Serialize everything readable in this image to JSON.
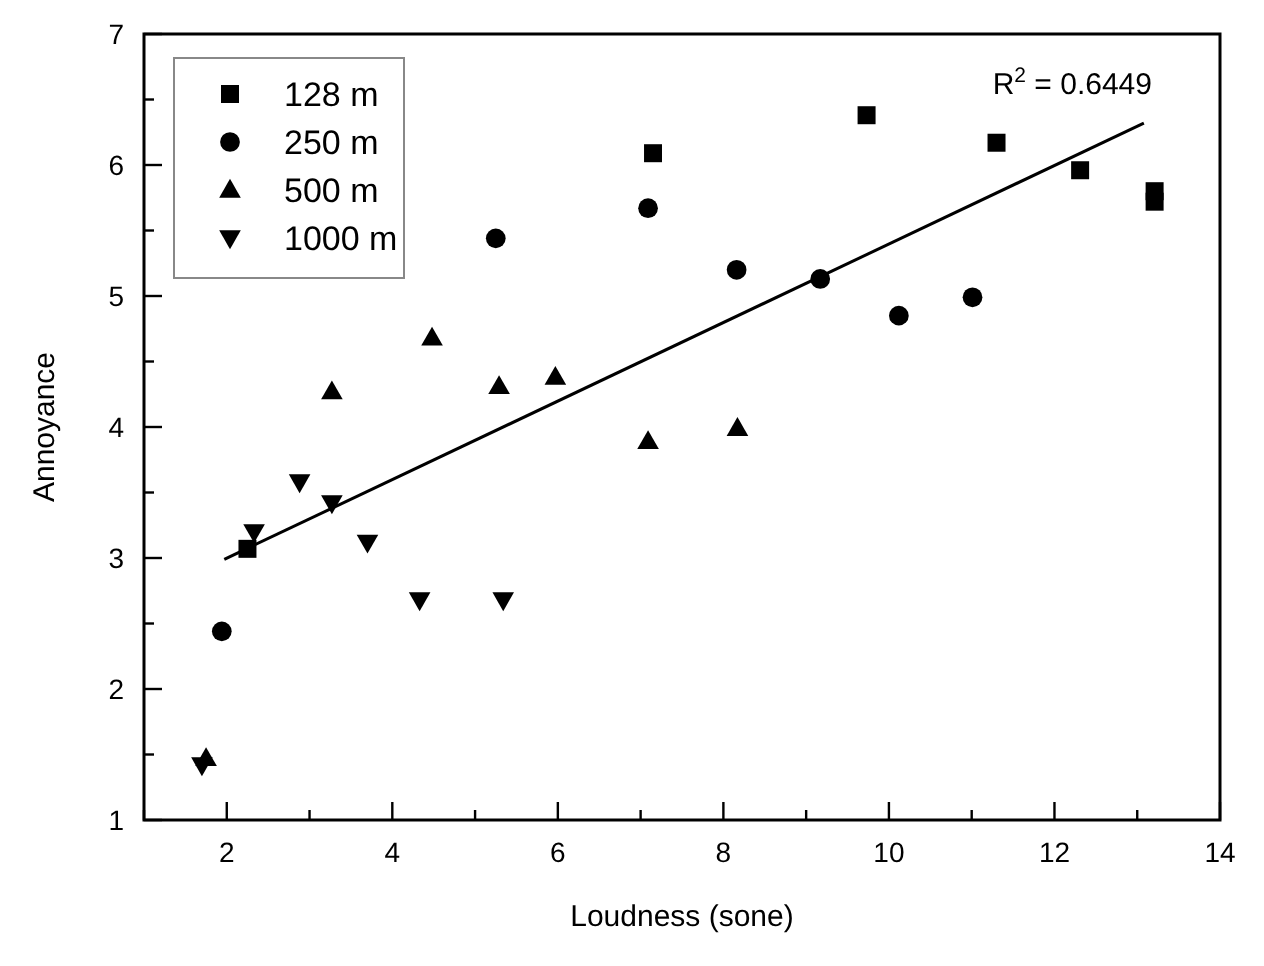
{
  "chart_data": {
    "type": "scatter",
    "xlabel": "Loudness (sone)",
    "ylabel": "Annoyance",
    "xlim": [
      1,
      14
    ],
    "ylim": [
      1,
      7
    ],
    "xticks": [
      {
        "value": 1,
        "label": null
      },
      2,
      {
        "value": 3,
        "label": null
      },
      4,
      {
        "value": 5,
        "label": null
      },
      6,
      {
        "value": 7,
        "label": null
      },
      8,
      {
        "value": 9,
        "label": null
      },
      10,
      {
        "value": 11,
        "label": null
      },
      12,
      {
        "value": 13,
        "label": null
      },
      14
    ],
    "yticks": [
      1,
      {
        "value": 1.5,
        "label": null
      },
      2,
      {
        "value": 2.5,
        "label": null
      },
      3,
      {
        "value": 3.5,
        "label": null
      },
      4,
      {
        "value": 4.5,
        "label": null
      },
      5,
      {
        "value": 5.5,
        "label": null
      },
      6,
      {
        "value": 6.5,
        "label": null
      },
      7
    ],
    "legend": "top left",
    "grid": false,
    "annotations": [
      "R$^{2}$ = 0.6449"
    ],
    "series": [
      {
        "name": "128 m",
        "color": "#000000",
        "marker": "square",
        "x": [
          2.25,
          7.15,
          9.73,
          11.3,
          12.31,
          13.21,
          13.21
        ],
        "values": [
          3.07,
          6.09,
          6.38,
          6.17,
          5.96,
          5.8,
          5.72
        ]
      },
      {
        "name": "250 m",
        "color": "#000000",
        "marker": "circle",
        "x": [
          1.94,
          5.25,
          7.09,
          8.16,
          9.17,
          10.12,
          11.01
        ],
        "values": [
          2.44,
          5.44,
          5.67,
          5.2,
          5.13,
          4.85,
          4.99
        ]
      },
      {
        "name": "500 m",
        "color": "#000000",
        "marker": "triangle",
        "x": [
          1.75,
          3.27,
          4.48,
          5.29,
          5.97,
          7.09,
          8.17
        ],
        "values": [
          1.47,
          4.27,
          4.68,
          4.31,
          4.38,
          3.89,
          3.99
        ]
      },
      {
        "name": "1000 m",
        "color": "#000000",
        "marker": "triangle-down",
        "x": [
          1.7,
          2.33,
          2.88,
          3.27,
          3.7,
          4.33,
          5.34
        ],
        "values": [
          1.42,
          3.2,
          3.58,
          3.42,
          3.12,
          2.68,
          2.68
        ]
      },
      {
        "type": "line",
        "color": "#000000",
        "marker": "none",
        "x": [
          1.97,
          13.08
        ],
        "values": [
          2.99,
          6.32
        ]
      }
    ]
  }
}
